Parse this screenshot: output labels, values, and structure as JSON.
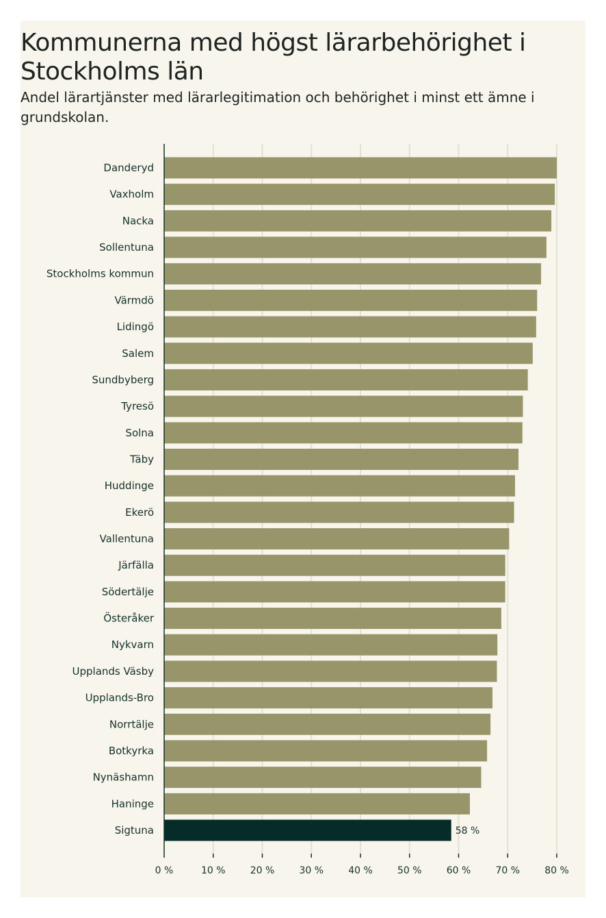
{
  "chart_data": {
    "type": "bar",
    "orientation": "horizontal",
    "title": "Kommunerna med högst lärarbehörighet i Stockholms län",
    "subtitle": "Andel lärartjänster med lärarlegitimation och behörighet i minst ett ämne i grundskolan.",
    "categories": [
      "Danderyd",
      "Vaxholm",
      "Nacka",
      "Sollentuna",
      "Stockholms kommun",
      "Värmdö",
      "Lidingö",
      "Salem",
      "Sundbyberg",
      "Tyresö",
      "Solna",
      "Täby",
      "Huddinge",
      "Ekerö",
      "Vallentuna",
      "Järfälla",
      "Södertälje",
      "Österåker",
      "Nykvarn",
      "Upplands Väsby",
      "Upplands-Bro",
      "Norrtälje",
      "Botkyrka",
      "Nynäshamn",
      "Haninge",
      "Sigtuna"
    ],
    "values": [
      80.0,
      79.6,
      78.9,
      77.9,
      76.8,
      76.0,
      75.8,
      75.1,
      74.1,
      73.1,
      73.0,
      72.2,
      71.5,
      71.3,
      70.3,
      69.5,
      69.5,
      68.7,
      67.9,
      67.8,
      66.9,
      66.5,
      65.8,
      64.6,
      62.3,
      58.5
    ],
    "highlight": "Sigtuna",
    "data_labels": [
      {
        "category": "Sigtuna",
        "text": "58 %"
      }
    ],
    "xlim": [
      0,
      80
    ],
    "ticks": [
      0,
      10,
      20,
      30,
      40,
      50,
      60,
      70,
      80
    ],
    "tick_labels": [
      "0 %",
      "10 %",
      "20 %",
      "30 %",
      "40 %",
      "50 %",
      "60 %",
      "70 %",
      "80 %"
    ],
    "xlabel": "",
    "ylabel": "",
    "grid": true,
    "colors": {
      "bar": "#99956b",
      "highlight": "#062c2a",
      "grid": "#e3e0d6",
      "axis": "#15302b"
    }
  }
}
